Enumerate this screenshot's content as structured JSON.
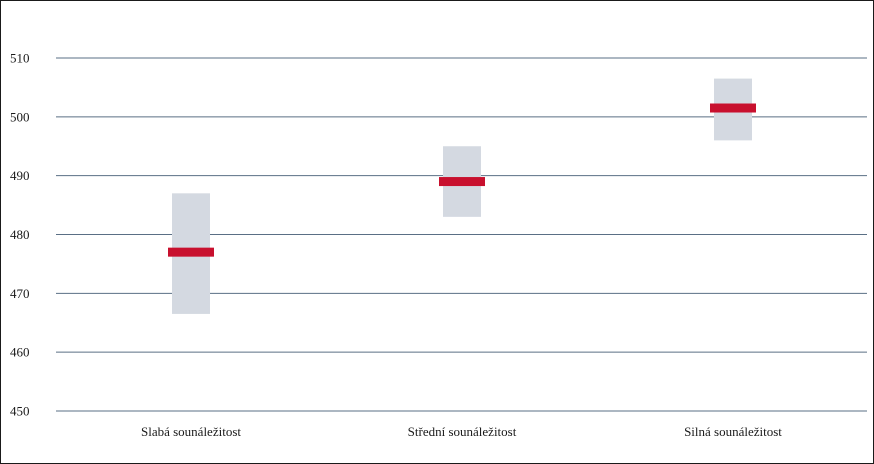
{
  "chart_data": {
    "type": "range-bar",
    "title": "",
    "xlabel": "",
    "ylabel": "",
    "ylim": [
      450,
      510
    ],
    "yticks": [
      450,
      460,
      470,
      480,
      490,
      500,
      510
    ],
    "grid": true,
    "categories": [
      "Slabá sounáležitost",
      "Střední sounáležitost",
      "Silná sounáležitost"
    ],
    "series": [
      {
        "values": [
          477,
          489,
          501.5
        ]
      },
      {
        "low": [
          466.5,
          483,
          496
        ],
        "high": [
          487,
          495,
          506.5
        ]
      }
    ],
    "colors": {
      "mean_marker": "#c8102e",
      "range_box": "#d4d9e1",
      "gridline": "#5a6f85",
      "text": "#1a1a1a"
    }
  }
}
